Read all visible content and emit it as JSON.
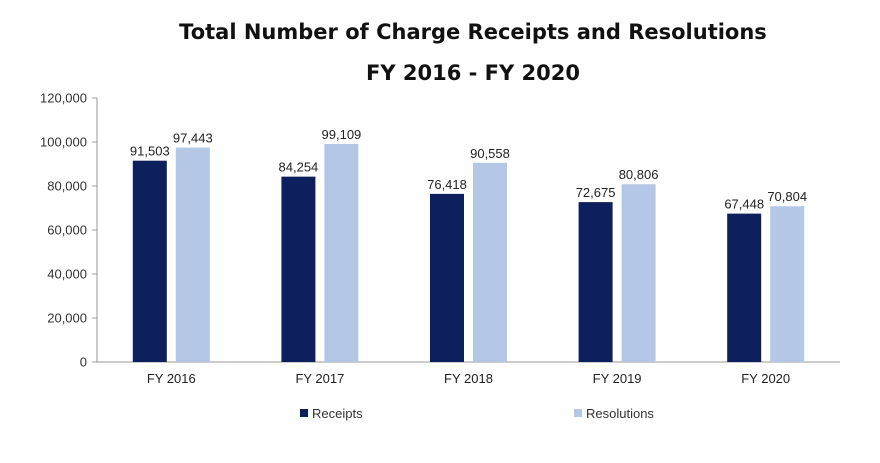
{
  "chart_data": {
    "type": "bar",
    "title": "Total Number of Charge Receipts and Resolutions",
    "subtitle": "FY 2016 - FY 2020",
    "categories": [
      "FY 2016",
      "FY 2017",
      "FY 2018",
      "FY 2019",
      "FY 2020"
    ],
    "series": [
      {
        "name": "Receipts",
        "color": "#0d1f5c",
        "values": [
          91503,
          84254,
          76418,
          72675,
          67448
        ],
        "labels": [
          "91,503",
          "84,254",
          "76,418",
          "72,675",
          "67,448"
        ]
      },
      {
        "name": "Resolutions",
        "color": "#b4c7e7",
        "values": [
          97443,
          99109,
          90558,
          80806,
          70804
        ],
        "labels": [
          "97,443",
          "99,109",
          "90,558",
          "80,806",
          "70,804"
        ]
      }
    ],
    "ylim": [
      0,
      120000
    ],
    "yticks": [
      0,
      20000,
      40000,
      60000,
      80000,
      100000,
      120000
    ],
    "ytick_labels": [
      "0",
      "20,000",
      "40,000",
      "60,000",
      "80,000",
      "100,000",
      "120,000"
    ],
    "xlabel": "",
    "ylabel": "",
    "grid": false,
    "legend": "bottom"
  }
}
